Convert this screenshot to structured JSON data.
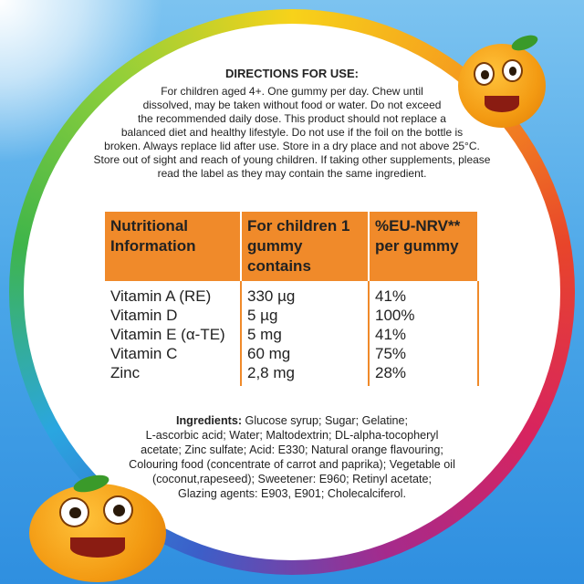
{
  "directions": {
    "title": "DIRECTIONS FOR USE:",
    "lines": [
      "For children aged 4+. One gummy per day. Chew until",
      "dissolved, may be taken without food or water. Do not exceed",
      "the recommended daily dose. This product should not replace a",
      "balanced diet and healthy lifestyle. Do not use if the foil on the bottle is",
      "broken. Always replace lid after use. Store in a dry place and not above 25°C.",
      "Store out of sight and reach of young children. If taking other supplements, please",
      "read the label as they may contain the same ingredient."
    ]
  },
  "nutrition": {
    "headers": [
      "Nutritional Information",
      "For children 1 gummy contains",
      "%EU-NRV** per gummy"
    ],
    "rows": [
      [
        "Vitamin A (RE)",
        "330 µg",
        "41%"
      ],
      [
        "Vitamin D",
        "5 µg",
        "100%"
      ],
      [
        "Vitamin E (α-TE)",
        "5 mg",
        "41%"
      ],
      [
        "Vitamin C",
        "60 mg",
        "75%"
      ],
      [
        "Zinc",
        "2,8 mg",
        "28%"
      ]
    ],
    "header_color": "#f08a2a"
  },
  "ingredients": {
    "label": "Ingredients:",
    "lines": [
      " Glucose syrup; Sugar; Gelatine;",
      "L-ascorbic acid; Water; Maltodextrin; DL-alpha-tocopheryl",
      "acetate; Zinc sulfate; Acid: E330; Natural orange flavouring;",
      "Colouring food (concentrate of carrot and paprika); Vegetable oil",
      "(coconut,rapeseed); Sweetener: E960; Retinyl acetate;",
      "Glazing agents: E903, E901; Cholecalciferol."
    ]
  }
}
